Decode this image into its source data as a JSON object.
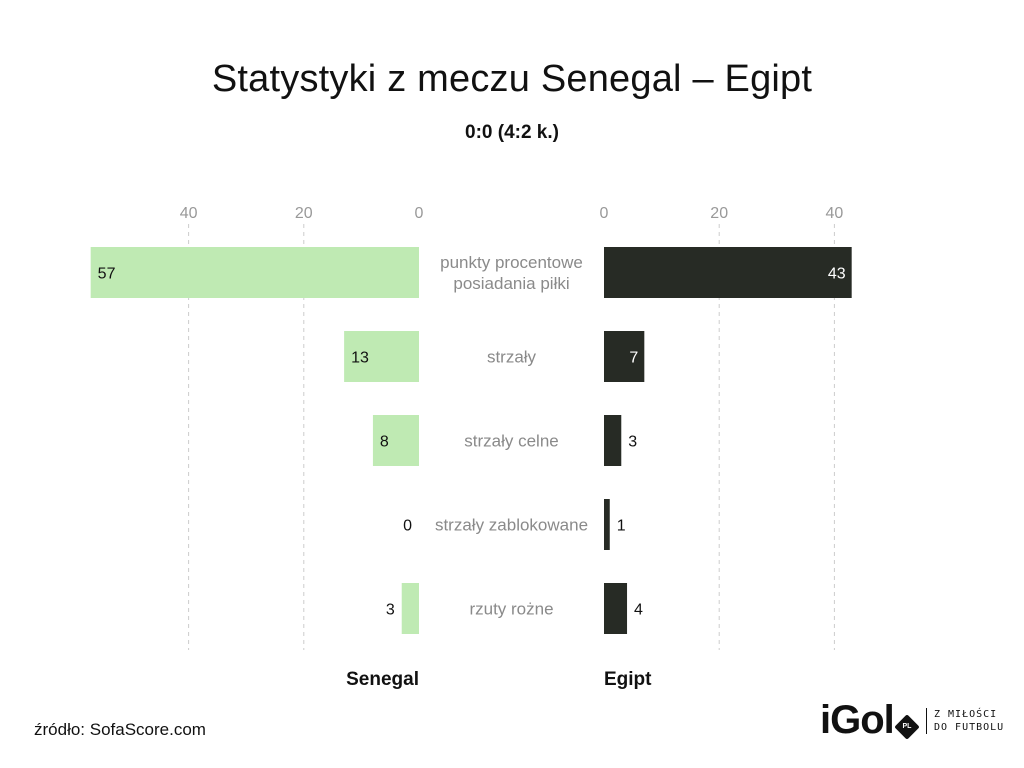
{
  "title": "Statystyki z meczu Senegal – Egipt",
  "subtitle": "0:0 (4:2 k.)",
  "source": "źródło: SofaScore.com",
  "logo": {
    "word": "iGol",
    "badge": "PL",
    "tagline_line1": "Z MIŁOŚCI",
    "tagline_line2": "DO FUTBOLU"
  },
  "colors": {
    "left_bar": "#bfeab3",
    "right_bar": "#272b25",
    "grid": "#cccccc",
    "axis_text": "#999999",
    "category_text": "#8a8a8a"
  },
  "chart_data": {
    "type": "bar",
    "orientation": "horizontal-butterfly",
    "categories": [
      "punkty procentowe\nposiadania piłki",
      "strzały",
      "strzały celne",
      "strzały zablokowane",
      "rzuty rożne"
    ],
    "series": [
      {
        "name": "Senegal",
        "values": [
          57,
          13,
          8,
          0,
          3
        ]
      },
      {
        "name": "Egipt",
        "values": [
          43,
          7,
          3,
          1,
          4
        ]
      }
    ],
    "xticks": [
      0,
      20,
      40
    ],
    "xlim": [
      0,
      57
    ],
    "grid": true,
    "legend": "below each side"
  }
}
